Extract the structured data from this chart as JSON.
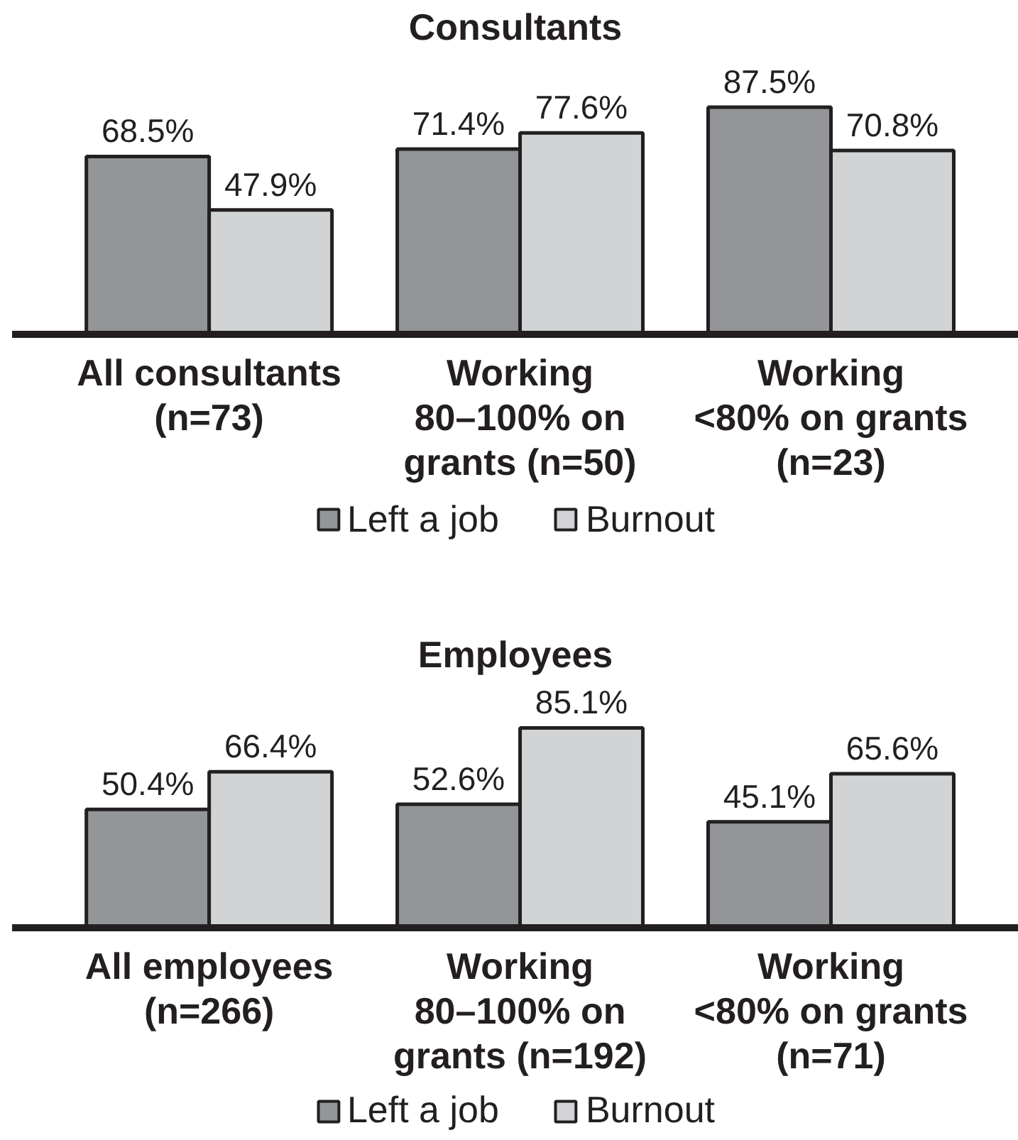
{
  "chart_data": [
    {
      "type": "bar",
      "title": "Consultants",
      "categories": [
        "All consultants\n(n=73)",
        "Working\n80–100% on\ngrants (n=50)",
        "Working\n<80% on grants\n(n=23)"
      ],
      "series": [
        {
          "name": "Left a job",
          "color": "#939598",
          "values": [
            68.5,
            71.4,
            87.5
          ],
          "value_labels": [
            "68.5%",
            "71.4%",
            "87.5%"
          ]
        },
        {
          "name": "Burnout",
          "color": "#d1d3d4",
          "values": [
            47.9,
            77.6,
            70.8
          ],
          "value_labels": [
            "47.9%",
            "77.6%",
            "70.8%"
          ]
        }
      ],
      "legend": "bottom"
    },
    {
      "type": "bar",
      "title": "Employees",
      "categories": [
        "All employees\n(n=266)",
        "Working\n80–100% on\ngrants (n=192)",
        "Working\n<80% on grants\n(n=71)"
      ],
      "series": [
        {
          "name": "Left a job",
          "color": "#939598",
          "values": [
            50.4,
            52.6,
            45.1
          ],
          "value_labels": [
            "50.4%",
            "52.6%",
            "45.1%"
          ]
        },
        {
          "name": "Burnout",
          "color": "#d1d3d4",
          "values": [
            66.4,
            85.1,
            65.6
          ],
          "value_labels": [
            "66.4%",
            "85.1%",
            "65.6%"
          ]
        }
      ],
      "legend": "bottom"
    }
  ]
}
